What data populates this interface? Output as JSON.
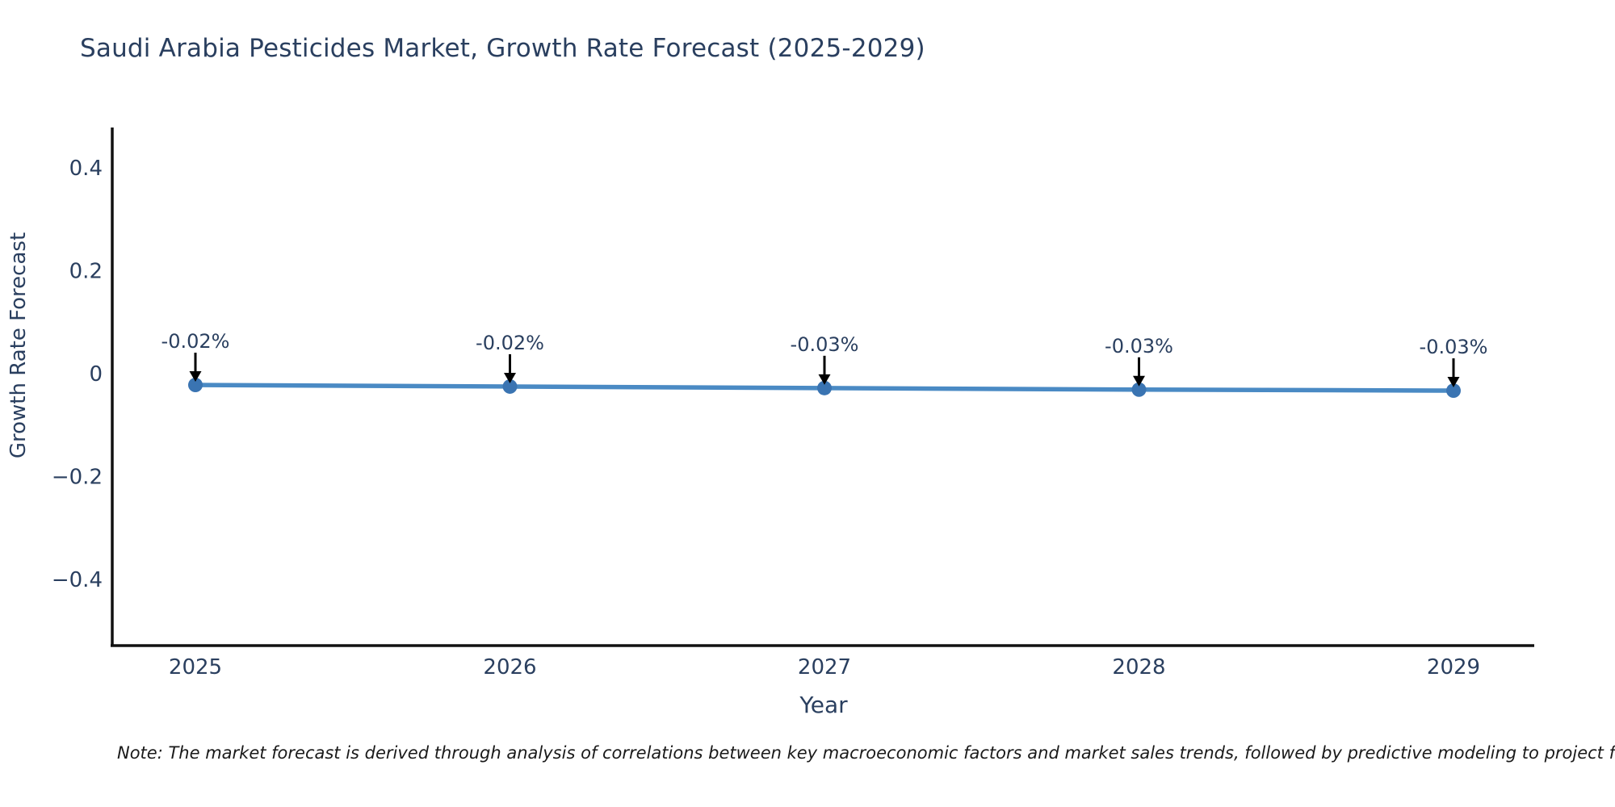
{
  "title": "Saudi Arabia Pesticides Market, Growth Rate Forecast (2025-2029)",
  "note": "Note: The market forecast is derived through analysis of correlations between key macroeconomic factors and market sales trends, followed by predictive modeling to project future sales",
  "chart_data": {
    "type": "line",
    "title": "Saudi Arabia Pesticides Market, Growth Rate Forecast (2025-2029)",
    "xlabel": "Year",
    "ylabel": "Growth Rate Forecast",
    "categories": [
      "2025",
      "2026",
      "2027",
      "2028",
      "2029"
    ],
    "values": [
      -0.022,
      -0.025,
      -0.028,
      -0.031,
      -0.033
    ],
    "point_labels": [
      "-0.02%",
      "-0.02%",
      "-0.03%",
      "-0.03%",
      "-0.03%"
    ],
    "yticks": [
      0.4,
      0.2,
      0,
      -0.2,
      -0.4
    ],
    "ytick_labels": [
      "0.4",
      "0.2",
      "0",
      "−0.2",
      "−0.4"
    ],
    "ylim": [
      -0.53,
      0.48
    ],
    "grid": false,
    "legend": false,
    "colors": {
      "line": "#4a8ac4",
      "marker": "#3a74b2",
      "axis": "#111111",
      "text": "#2a3f5f",
      "annotation_arrow": "#000000"
    }
  }
}
